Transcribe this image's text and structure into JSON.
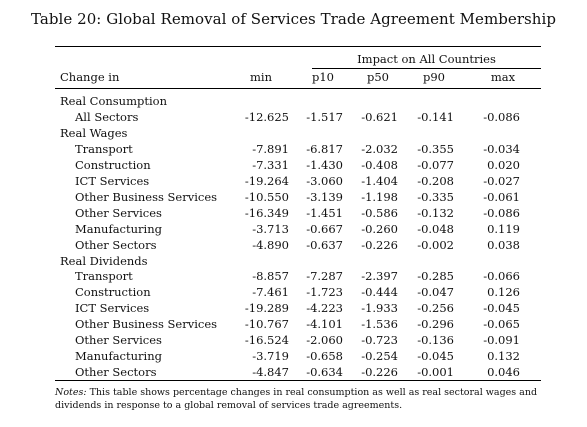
{
  "caption": "Table 20: Global Removal of Services Trade Agreement Membership",
  "group_header": "Impact on All Countries",
  "columns": [
    "Change in",
    "min",
    "p10",
    "p50",
    "p90",
    "max"
  ],
  "sections": [
    {
      "title": "Real Consumption",
      "rows": [
        {
          "label": "All Sectors",
          "values": [
            "-12.625",
            "-1.517",
            "-0.621",
            "-0.141",
            "-0.086"
          ]
        }
      ]
    },
    {
      "title": "Real Wages",
      "rows": [
        {
          "label": "Transport",
          "values": [
            "-7.891",
            "-6.817",
            "-2.032",
            "-0.355",
            "-0.034"
          ]
        },
        {
          "label": "Construction",
          "values": [
            "-7.331",
            "-1.430",
            "-0.408",
            "-0.077",
            "0.020"
          ]
        },
        {
          "label": "ICT Services",
          "values": [
            "-19.264",
            "-3.060",
            "-1.404",
            "-0.208",
            "-0.027"
          ]
        },
        {
          "label": "Other Business Services",
          "values": [
            "-10.550",
            "-3.139",
            "-1.198",
            "-0.335",
            "-0.061"
          ]
        },
        {
          "label": "Other Services",
          "values": [
            "-16.349",
            "-1.451",
            "-0.586",
            "-0.132",
            "-0.086"
          ]
        },
        {
          "label": "Manufacturing",
          "values": [
            "-3.713",
            "-0.667",
            "-0.260",
            "-0.048",
            "0.119"
          ]
        },
        {
          "label": "Other Sectors",
          "values": [
            "-4.890",
            "-0.637",
            "-0.226",
            "-0.002",
            "0.038"
          ]
        }
      ]
    },
    {
      "title": "Real Dividends",
      "rows": [
        {
          "label": "Transport",
          "values": [
            "-8.857",
            "-7.287",
            "-2.397",
            "-0.285",
            "-0.066"
          ]
        },
        {
          "label": "Construction",
          "values": [
            "-7.461",
            "-1.723",
            "-0.444",
            "-0.047",
            "0.126"
          ]
        },
        {
          "label": "ICT Services",
          "values": [
            "-19.289",
            "-4.223",
            "-1.933",
            "-0.256",
            "-0.045"
          ]
        },
        {
          "label": "Other Business Services",
          "values": [
            "-10.767",
            "-4.101",
            "-1.536",
            "-0.296",
            "-0.065"
          ]
        },
        {
          "label": "Other Services",
          "values": [
            "-16.524",
            "-2.060",
            "-0.723",
            "-0.136",
            "-0.091"
          ]
        },
        {
          "label": "Manufacturing",
          "values": [
            "-3.719",
            "-0.658",
            "-0.254",
            "-0.045",
            "0.132"
          ]
        },
        {
          "label": "Other Sectors",
          "values": [
            "-4.847",
            "-0.634",
            "-0.226",
            "-0.001",
            "0.046"
          ]
        }
      ]
    }
  ],
  "notes_label": "Notes:",
  "notes_text": " This table shows percentage changes in real consumption as well as real sectoral wages and dividends in response to a global removal of services trade agreements."
}
